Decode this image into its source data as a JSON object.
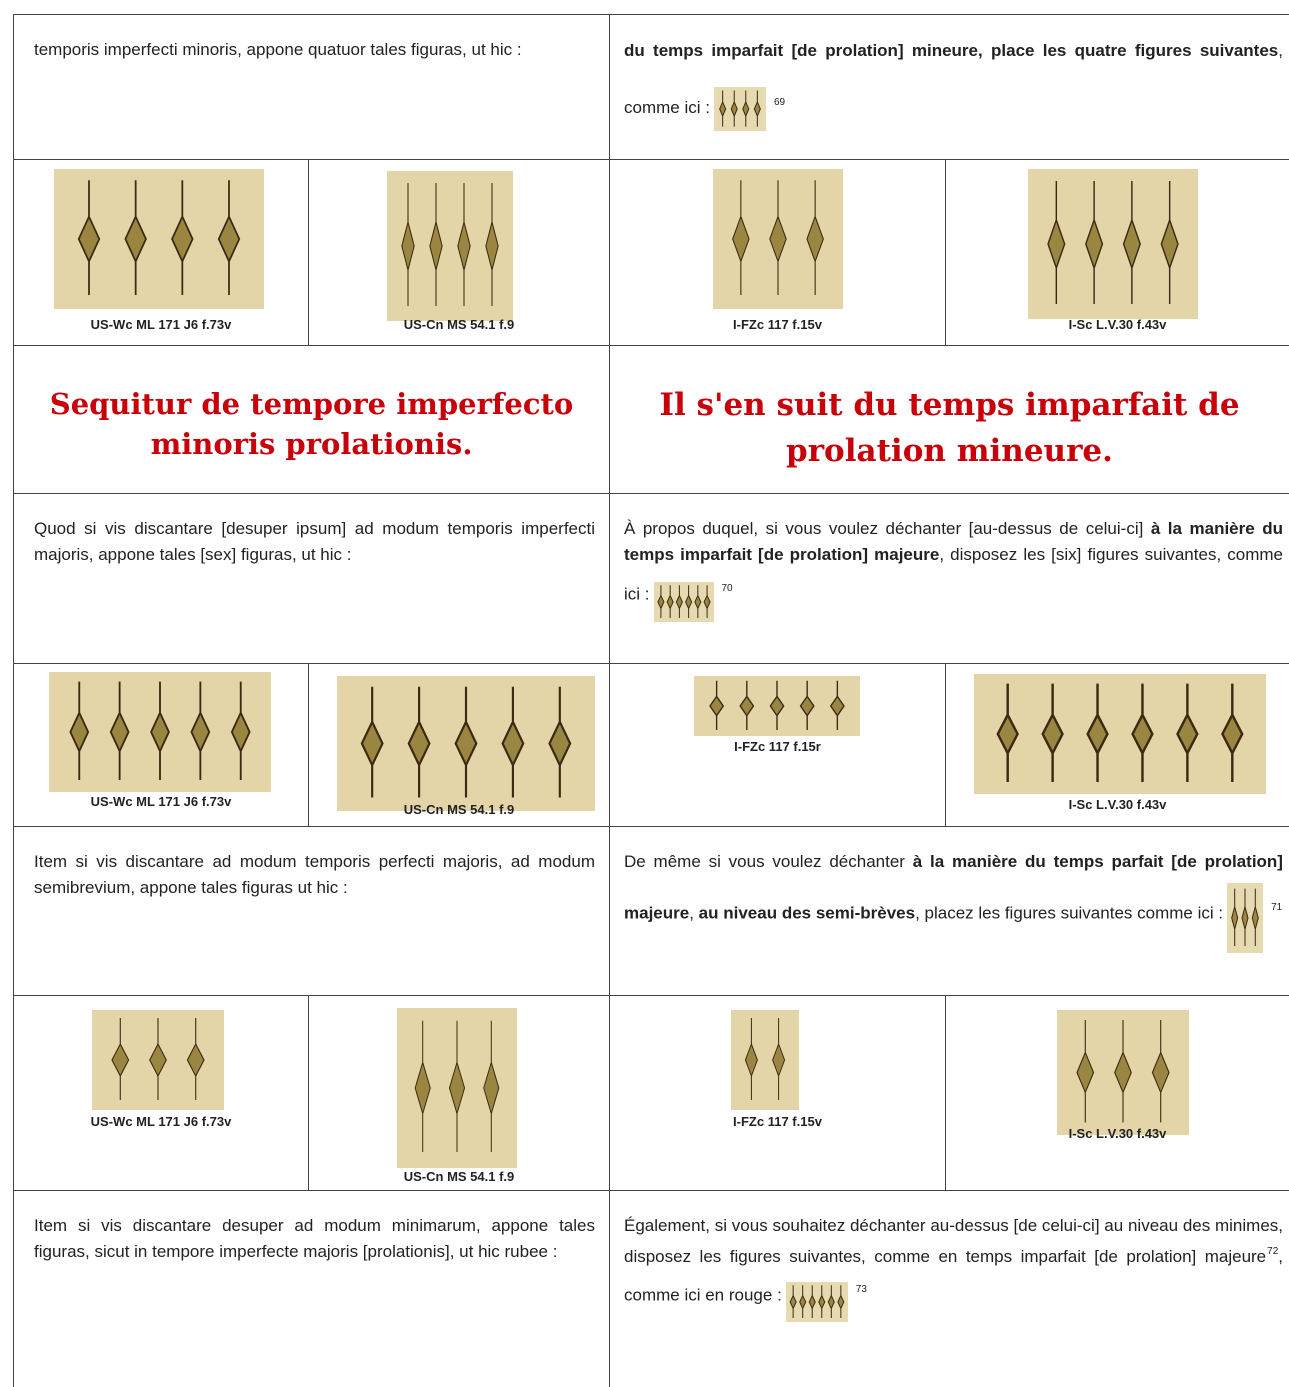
{
  "rows": [
    {
      "latin": "temporis imperfecti minoris, appone quatuor tales figuras, ut hic :",
      "french": [
        "du temps imparfait [de prolation] mineure, place les quatre figures suivantes",
        ", comme ici :"
      ],
      "note": "69"
    },
    {
      "captions": [
        "US-Wc ML 171 J6 f.73v",
        "US-Cn MS 54.1 f.9",
        "I-FZc 117 f.15v",
        "I-Sc L.V.30 f.43v"
      ]
    },
    {
      "latin": "Sequitur de tempore imperfecto minoris prolationis.",
      "french": "Il s'en suit du temps imparfait de prolation mineure."
    },
    {
      "latin": "Quod si vis discantare [desuper ipsum] ad modum temporis imperfecti majoris, appone tales [sex] figuras, ut hic :",
      "french": [
        "À propos duquel, si vous voulez déchanter [au-dessus de celui-ci]",
        "à la manière du temps imparfait [de prolation] majeure",
        ", disposez les [six] figures suivantes, comme ici :"
      ],
      "note": "70"
    },
    {
      "captions": [
        "US-Wc ML 171 J6 f.73v",
        "US-Cn MS 54.1 f.9",
        "I-FZc 117 f.15r",
        "I-Sc L.V.30 f.43v"
      ]
    },
    {
      "latin": "Item si vis discantare ad modum temporis perfecti majoris, ad modum semibrevium, appone tales figuras ut hic :",
      "french": [
        "De même si vous voulez déchanter",
        "à la manière du temps parfait [de prolation] majeure",
        ",",
        "au niveau des semi-brèves",
        ", placez les figures suivantes comme ici :"
      ],
      "note": "71"
    },
    {
      "captions": [
        "US-Wc ML 171 J6 f.73v",
        "US-Cn MS 54.1 f.9",
        "I-FZc 117 f.15v",
        "I-Sc L.V.30 f.43v"
      ]
    },
    {
      "latin": "Item si vis discantare desuper ad modum minimarum, appone tales figuras, sicut in tempore imperfecte majoris [prolationis], ut hic rubee :",
      "french": [
        "Également, si vous souhaitez déchanter au-dessus [de celui-ci] au niveau des minimes, disposez les figures suivantes, comme en temps imparfait [de prolation] majeure",
        ", comme ici en rouge :"
      ],
      "notes": [
        "72",
        "73"
      ]
    }
  ]
}
